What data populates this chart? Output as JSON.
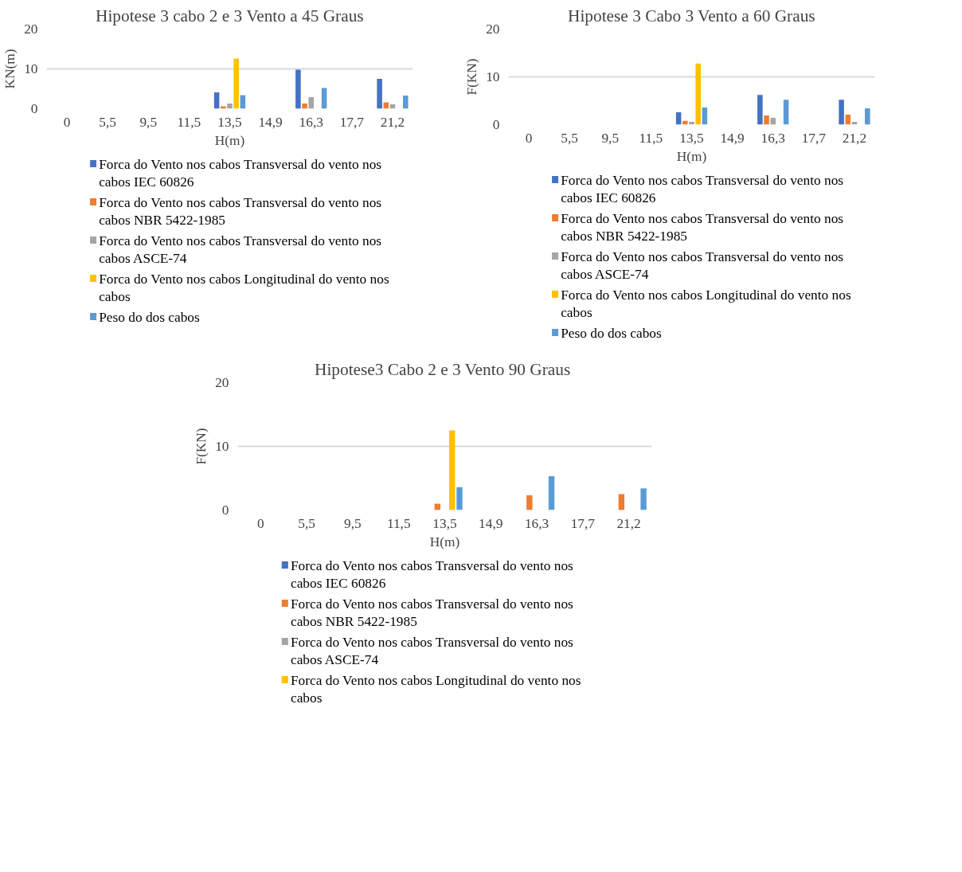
{
  "chart_data": [
    {
      "type": "bar",
      "title": "Hipotese 3 cabo 2 e 3 Vento a 45 Graus",
      "xlabel": "H(m)",
      "ylabel": "KN(m)",
      "categories": [
        "0",
        "5,5",
        "9,5",
        "11,5",
        "13,5",
        "14,9",
        "16,3",
        "17,7",
        "21,2"
      ],
      "series": [
        {
          "name": "Forca do Vento nos cabos Transversal do vento nos cabos IEC 60826",
          "color": "#4472c4",
          "values": [
            null,
            null,
            null,
            null,
            4.1,
            null,
            9.8,
            null,
            7.5
          ]
        },
        {
          "name": "Forca do Vento nos cabos Transversal do vento nos cabos NBR 5422-1985",
          "color": "#ed7d31",
          "values": [
            null,
            null,
            null,
            null,
            0.6,
            null,
            1.3,
            null,
            1.6
          ]
        },
        {
          "name": "Forca do Vento nos cabos Transversal do vento nos cabos ASCE-74",
          "color": "#a5a5a5",
          "values": [
            null,
            null,
            null,
            null,
            1.3,
            null,
            2.9,
            null,
            1.1
          ]
        },
        {
          "name": "Forca do Vento nos cabos Longitudinal do vento nos cabos",
          "color": "#ffc000",
          "values": [
            null,
            null,
            null,
            null,
            12.6,
            null,
            null,
            null,
            null
          ]
        },
        {
          "name": "Peso do dos cabos",
          "color": "#5b9bd5",
          "values": [
            null,
            null,
            null,
            null,
            3.4,
            null,
            5.2,
            null,
            3.3
          ]
        }
      ],
      "ylim": [
        0,
        20
      ],
      "yticks": [
        0,
        10,
        20
      ],
      "grid": "y",
      "legend": "bottom"
    },
    {
      "type": "bar",
      "title": "Hipotese 3 Cabo 3 Vento a 60 Graus",
      "xlabel": "H(m)",
      "ylabel": "F(KN)",
      "categories": [
        "0",
        "5,5",
        "9,5",
        "11,5",
        "13,5",
        "14,9",
        "16,3",
        "17,7",
        "21,2"
      ],
      "series": [
        {
          "name": "Forca do Vento nos cabos Transversal do vento nos cabos IEC 60826",
          "color": "#4472c4",
          "values": [
            null,
            null,
            null,
            null,
            2.6,
            null,
            6.2,
            null,
            5.2
          ]
        },
        {
          "name": "Forca do Vento nos cabos Transversal do vento nos cabos NBR 5422-1985",
          "color": "#ed7d31",
          "values": [
            null,
            null,
            null,
            null,
            0.8,
            null,
            1.9,
            null,
            2.1
          ]
        },
        {
          "name": "Forca do Vento nos cabos Transversal do vento nos cabos ASCE-74",
          "color": "#a5a5a5",
          "values": [
            null,
            null,
            null,
            null,
            0.6,
            null,
            1.4,
            null,
            0.6
          ]
        },
        {
          "name": "Forca do Vento nos cabos Longitudinal do vento nos cabos",
          "color": "#ffc000",
          "values": [
            null,
            null,
            null,
            null,
            12.8,
            null,
            null,
            null,
            null
          ]
        },
        {
          "name": "Peso do dos cabos",
          "color": "#5b9bd5",
          "values": [
            null,
            null,
            null,
            null,
            3.6,
            null,
            5.2,
            null,
            3.4
          ]
        }
      ],
      "ylim": [
        0,
        20
      ],
      "yticks": [
        0,
        10,
        20
      ],
      "grid": "y",
      "legend": "bottom"
    },
    {
      "type": "bar",
      "title": "Hipotese3 Cabo 2 e 3 Vento 90  Graus",
      "xlabel": "H(m)",
      "ylabel": "F(KN)",
      "categories": [
        "0",
        "5,5",
        "9,5",
        "11,5",
        "13,5",
        "14,9",
        "16,3",
        "17,7",
        "21,2"
      ],
      "series": [
        {
          "name": "Forca do Vento nos cabos Transversal do vento nos cabos IEC 60826",
          "color": "#4472c4",
          "values": [
            null,
            null,
            null,
            null,
            null,
            null,
            null,
            null,
            null
          ]
        },
        {
          "name": "Forca do Vento nos cabos Transversal do vento nos cabos NBR 5422-1985",
          "color": "#ed7d31",
          "values": [
            null,
            null,
            null,
            null,
            1.0,
            null,
            2.3,
            null,
            2.5
          ]
        },
        {
          "name": "Forca do Vento nos cabos Transversal do vento nos cabos ASCE-74",
          "color": "#a5a5a5",
          "values": [
            null,
            null,
            null,
            null,
            null,
            null,
            null,
            null,
            null
          ]
        },
        {
          "name": "Forca do Vento nos cabos Longitudinal do vento nos cabos",
          "color": "#ffc000",
          "values": [
            null,
            null,
            null,
            null,
            12.5,
            null,
            null,
            null,
            null
          ]
        },
        {
          "color": "#5b9bd5",
          "values": [
            null,
            null,
            null,
            null,
            3.6,
            null,
            5.3,
            null,
            3.4
          ]
        }
      ],
      "ylim": [
        0,
        20
      ],
      "yticks": [
        0,
        10,
        20
      ],
      "grid": "y",
      "legend": "bottom"
    }
  ]
}
